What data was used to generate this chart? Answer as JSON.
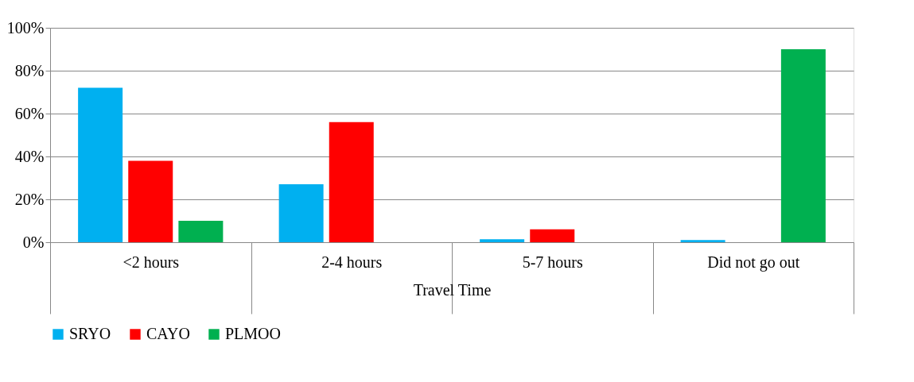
{
  "chart_data": {
    "type": "bar",
    "xlabel": "Travel Time",
    "categories": [
      "<2 hours",
      "2-4 hours",
      "5-7 hours",
      "Did not go out"
    ],
    "series": [
      {
        "name": "SRYO",
        "color": "#00b0f0",
        "values": [
          72,
          27,
          1.4,
          1
        ]
      },
      {
        "name": "CAYO",
        "color": "#ff0000",
        "values": [
          38,
          56,
          6,
          0
        ]
      },
      {
        "name": "PLMOO",
        "color": "#00b050",
        "values": [
          10,
          0,
          0,
          90
        ]
      }
    ],
    "ylim": [
      0,
      100
    ],
    "yticks": [
      {
        "value": 0,
        "label": "0%"
      },
      {
        "value": 20,
        "label": "20%"
      },
      {
        "value": 40,
        "label": "40%"
      },
      {
        "value": 60,
        "label": "60%"
      },
      {
        "value": 80,
        "label": "80%"
      },
      {
        "value": 100,
        "label": "100%"
      }
    ],
    "grid": "y",
    "legend": "bottom"
  }
}
